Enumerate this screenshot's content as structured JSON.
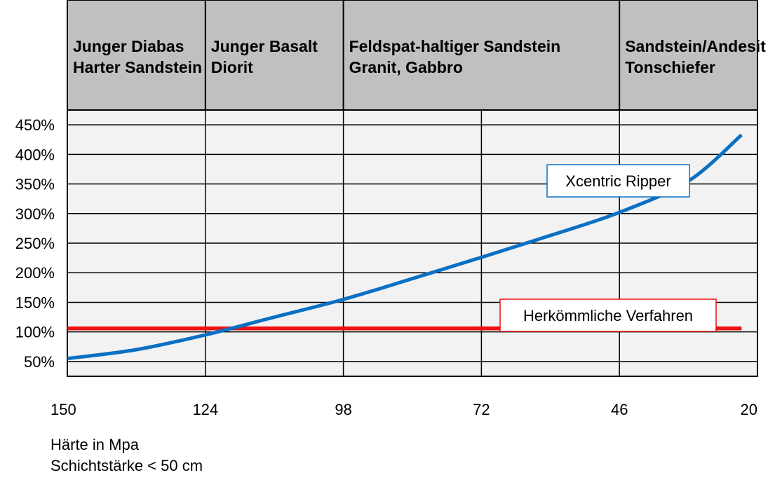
{
  "chart_data": {
    "type": "line",
    "x_axis": {
      "ticks": [
        150,
        124,
        98,
        72,
        46,
        20
      ],
      "range": [
        150,
        20
      ],
      "reversed": true,
      "label_lines": [
        "Härte in Mpa",
        "Schichtstärke < 50 cm"
      ]
    },
    "y_axis": {
      "ticks": [
        "50%",
        "100%",
        "150%",
        "200%",
        "250%",
        "300%",
        "350%",
        "400%",
        "450%"
      ],
      "tick_values": [
        50,
        100,
        150,
        200,
        250,
        300,
        350,
        400,
        450
      ],
      "range": [
        25,
        475
      ]
    },
    "grid": true,
    "categories": [
      {
        "lines": [
          "Junger Diabas",
          "Harter Sandstein"
        ],
        "x_range": [
          150,
          124
        ]
      },
      {
        "lines": [
          "Junger Basalt",
          "Diorit"
        ],
        "x_range": [
          124,
          98
        ]
      },
      {
        "lines": [
          "Feldspat-haltiger Sandstein",
          "Granit, Gabbro"
        ],
        "x_range": [
          98,
          46
        ]
      },
      {
        "lines": [
          "Sandstein/Andesit",
          "Tonschiefer"
        ],
        "x_range": [
          46,
          20
        ]
      }
    ],
    "series": [
      {
        "name": "Xcentric Ripper",
        "color": "#0a70c4",
        "x": [
          150,
          137,
          124,
          111,
          98,
          85,
          72,
          59,
          46,
          33,
          23
        ],
        "y": [
          55,
          70,
          95,
          125,
          155,
          190,
          226,
          263,
          302,
          355,
          433
        ]
      },
      {
        "name": "Herkömmliche Verfahren",
        "color": "#ee1111",
        "x": [
          150,
          23
        ],
        "y": [
          106,
          106
        ]
      }
    ]
  }
}
